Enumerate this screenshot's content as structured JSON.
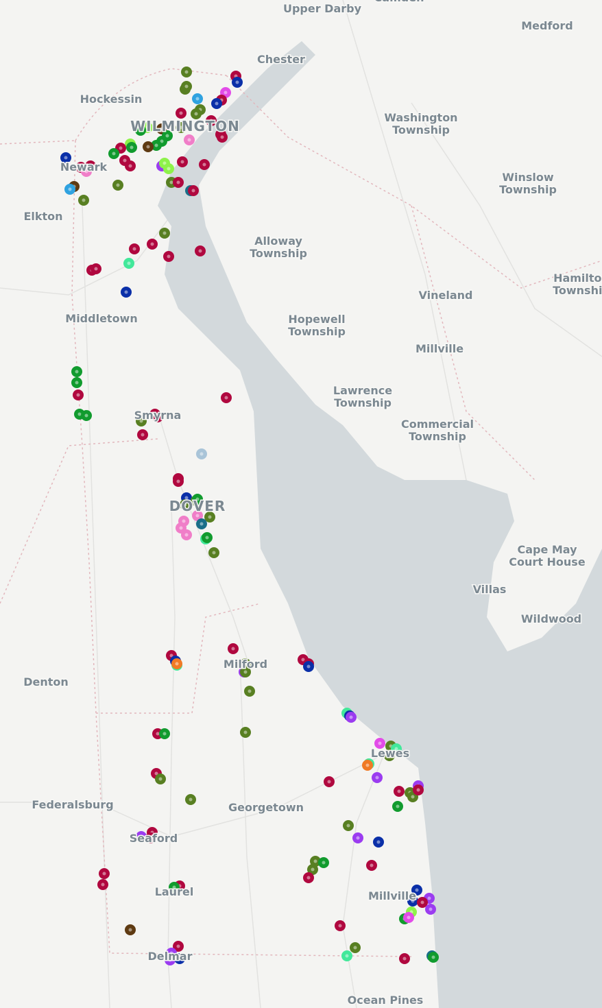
{
  "places": [
    [
      "Upper Darby"
    ],
    [
      "Camden"
    ],
    [
      "Medford"
    ],
    [
      "Chester"
    ],
    [
      "Hockessin"
    ],
    [
      "WILMINGTON"
    ],
    [
      "Newark"
    ],
    [
      "Washington",
      "Township"
    ],
    [
      "Winslow",
      "Township"
    ],
    [
      "Elkton"
    ],
    [
      "Alloway",
      "Township"
    ],
    [
      "Vineland"
    ],
    [
      "Hamilton",
      "Township"
    ],
    [
      "Middletown"
    ],
    [
      "Hopewell",
      "Township"
    ],
    [
      "Millville"
    ],
    [
      "Lawrence",
      "Township"
    ],
    [
      "Smyrna"
    ],
    [
      "Commercial",
      "Township"
    ],
    [
      "DOVER"
    ],
    [
      "Cape May",
      "Court House"
    ],
    [
      "Villas"
    ],
    [
      "Wildwood"
    ],
    [
      "Denton"
    ],
    [
      "Milford"
    ],
    [
      "Lewes"
    ],
    [
      "Federalsburg"
    ],
    [
      "Georgetown"
    ],
    [
      "Seaford"
    ],
    [
      "Laurel"
    ],
    [
      "Millville"
    ],
    [
      "Delmar"
    ],
    [
      "Ocean Pines"
    ]
  ]
}
